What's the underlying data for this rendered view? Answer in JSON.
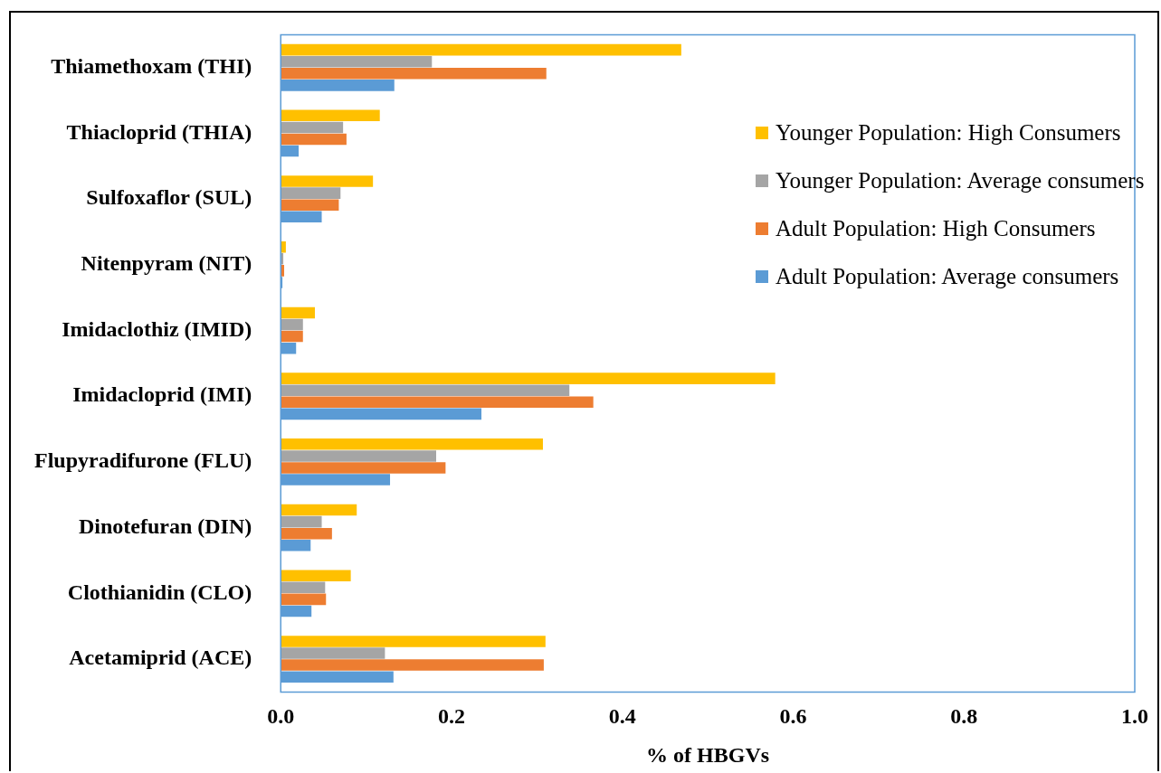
{
  "chart_data": {
    "type": "bar",
    "orientation": "horizontal",
    "xlabel": "% of HBGVs",
    "categories": [
      "Thiamethoxam (THI)",
      "Thiacloprid (THIA)",
      "Sulfoxaflor (SUL)",
      "Nitenpyram (NIT)",
      "Imidaclothiz (IMID)",
      "Imidacloprid (IMI)",
      "Flupyradifurone (FLU)",
      "Dinotefuran (DIN)",
      "Clothianidin (CLO)",
      "Acetamiprid (ACE)"
    ],
    "series": [
      {
        "name": "Younger Population: High Consumers",
        "color": "#ffc000",
        "values": [
          0.469,
          0.116,
          0.108,
          0.006,
          0.04,
          0.579,
          0.307,
          0.089,
          0.082,
          0.31
        ]
      },
      {
        "name": "Younger Population: Average consumers",
        "color": "#a5a5a5",
        "values": [
          0.177,
          0.073,
          0.07,
          0.003,
          0.026,
          0.338,
          0.182,
          0.048,
          0.052,
          0.122
        ]
      },
      {
        "name": "Adult Population: High Consumers",
        "color": "#ed7d31",
        "values": [
          0.311,
          0.077,
          0.068,
          0.004,
          0.026,
          0.366,
          0.193,
          0.06,
          0.053,
          0.308
        ]
      },
      {
        "name": "Adult Population: Average consumers",
        "color": "#5b9bd5",
        "values": [
          0.133,
          0.021,
          0.048,
          0.002,
          0.018,
          0.235,
          0.128,
          0.035,
          0.036,
          0.132
        ]
      }
    ],
    "xlim": [
      0,
      1
    ],
    "xticks": [
      {
        "value": 0,
        "label": "0.0"
      },
      {
        "value": 0.2,
        "label": "0.2"
      },
      {
        "value": 0.4,
        "label": "0.4"
      },
      {
        "value": 0.6,
        "label": "0.6"
      },
      {
        "value": 0.8,
        "label": "0.8"
      },
      {
        "value": 1,
        "label": "1.0"
      }
    ],
    "legend": "top right",
    "grid": false
  }
}
